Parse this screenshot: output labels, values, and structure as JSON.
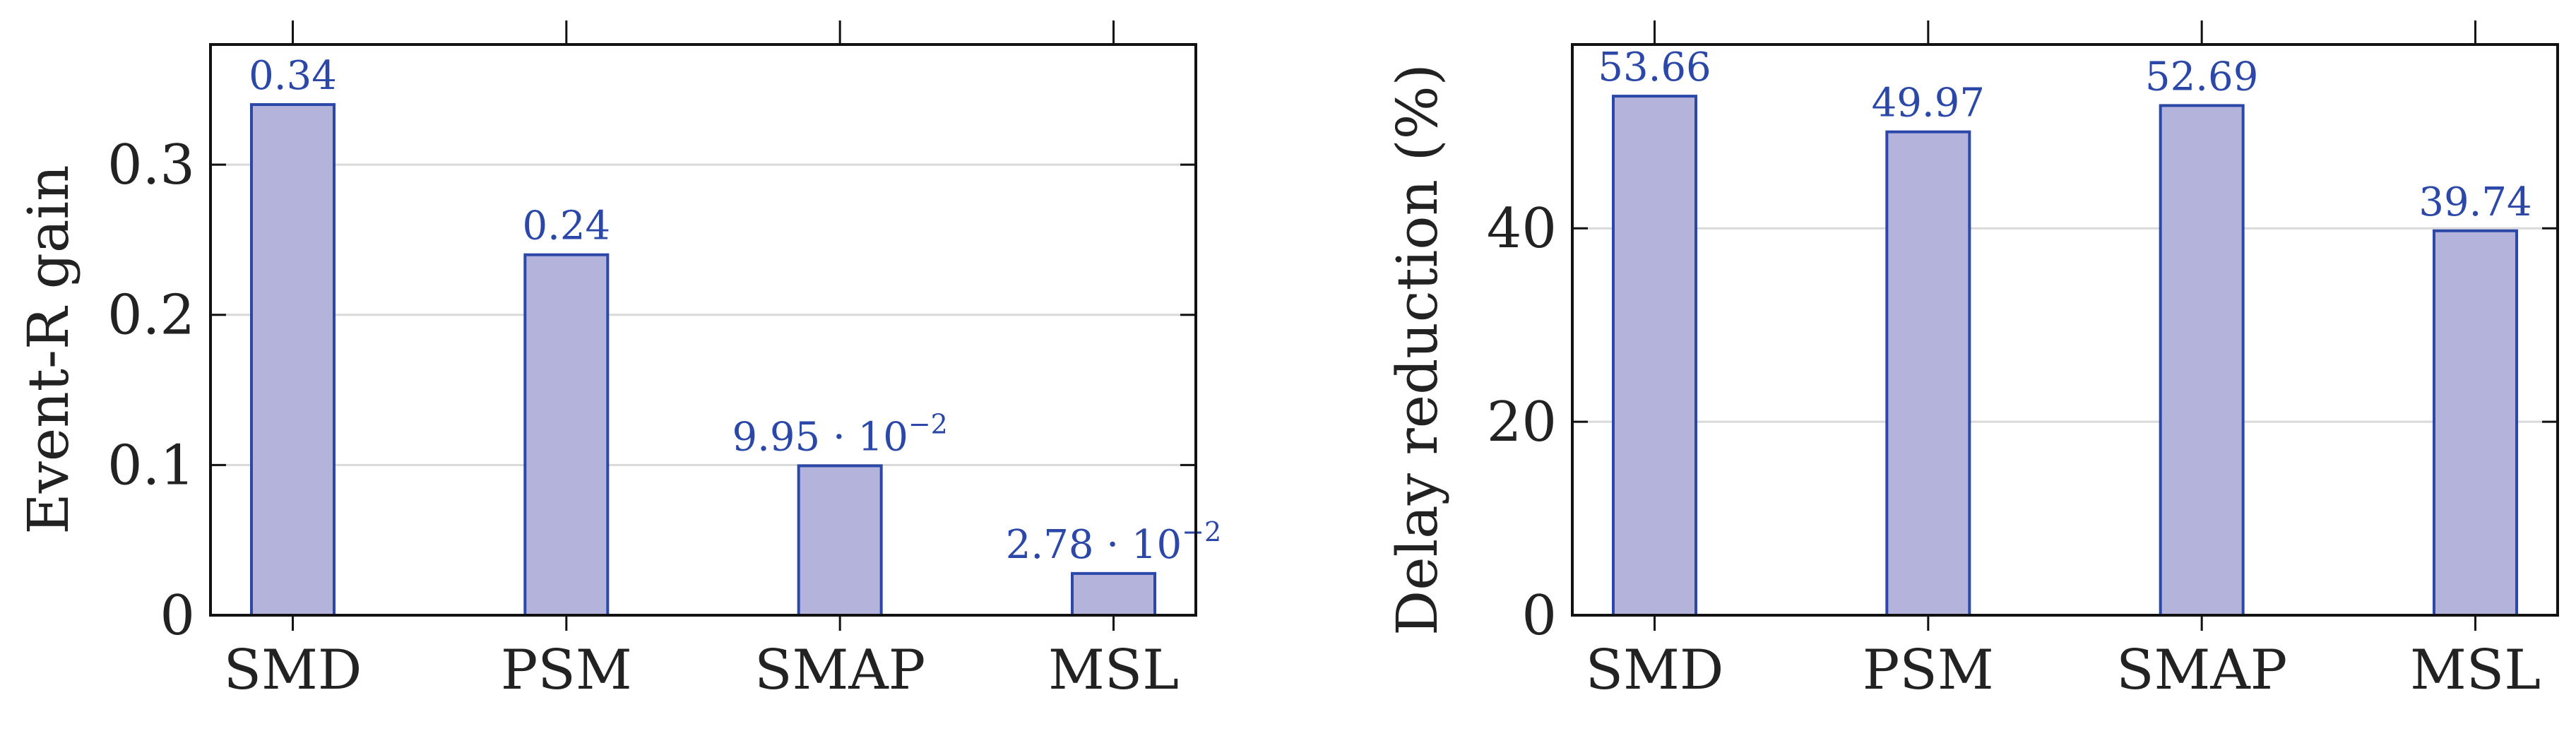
{
  "chart_data": [
    {
      "type": "bar",
      "categories": [
        "SMD",
        "PSM",
        "SMAP",
        "MSL"
      ],
      "values": [
        0.34,
        0.24,
        0.0995,
        0.0278
      ],
      "value_labels": [
        {
          "text": "0.34"
        },
        {
          "text": "0.24"
        },
        {
          "text": "9.95 · 10",
          "sup": "−2"
        },
        {
          "text": "2.78 · 10",
          "sup": "−2"
        }
      ],
      "xlabel": "",
      "ylabel": "Event-R gain",
      "ylim": [
        0,
        0.38
      ],
      "yticks": [
        0,
        0.1,
        0.2,
        0.3
      ],
      "ytick_labels": [
        "0",
        "0.1",
        "0.2",
        "0.3"
      ],
      "grid": true
    },
    {
      "type": "bar",
      "categories": [
        "SMD",
        "PSM",
        "SMAP",
        "MSL"
      ],
      "values": [
        53.66,
        49.97,
        52.69,
        39.74
      ],
      "value_labels": [
        {
          "text": "53.66"
        },
        {
          "text": "49.97"
        },
        {
          "text": "52.69"
        },
        {
          "text": "39.74"
        }
      ],
      "xlabel": "",
      "ylabel": "Delay reduction (%)",
      "ylim": [
        0,
        59
      ],
      "yticks": [
        0,
        20,
        40
      ],
      "ytick_labels": [
        "0",
        "20",
        "40"
      ],
      "grid": true
    }
  ],
  "colors": {
    "bar_fill": "#b3b3dc",
    "bar_stroke": "#2b48a8",
    "label_color": "#2b48a8",
    "grid_color": "#d9d9d9",
    "axis_color": "#111111"
  }
}
